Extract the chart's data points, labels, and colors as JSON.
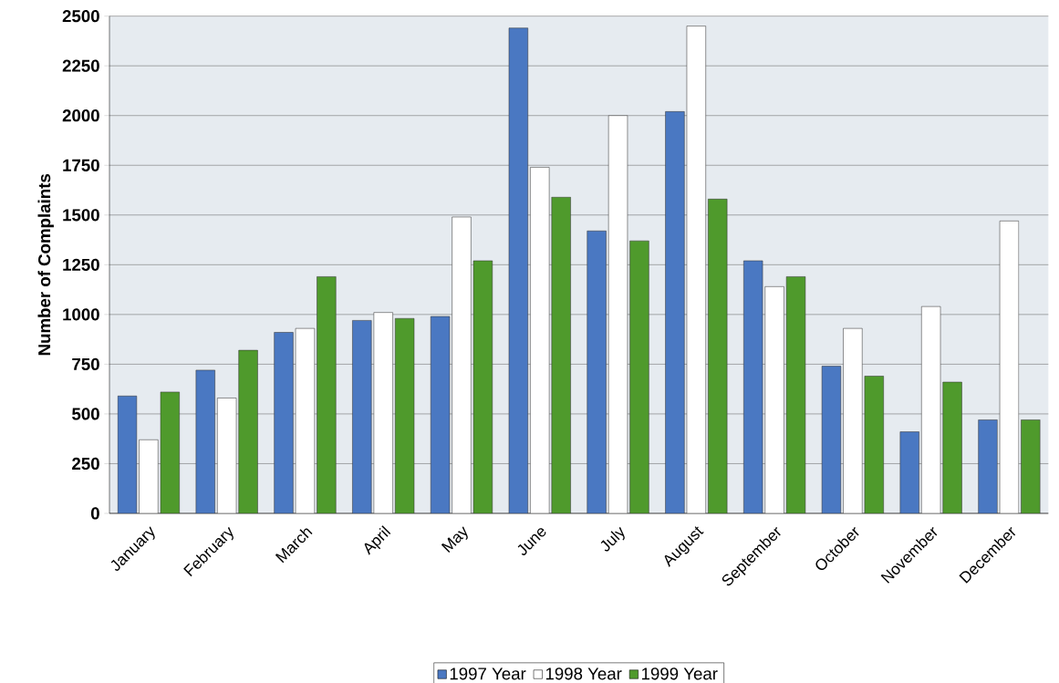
{
  "chart_data": {
    "type": "bar",
    "ylabel": "Number of Complaints",
    "categories": [
      "January",
      "February",
      "March",
      "April",
      "May",
      "June",
      "July",
      "August",
      "September",
      "October",
      "November",
      "December"
    ],
    "series": [
      {
        "name": "1997 Year",
        "color": "#4a78c2",
        "values": [
          590,
          720,
          910,
          970,
          990,
          2440,
          1420,
          2020,
          1270,
          740,
          410,
          470
        ]
      },
      {
        "name": "1998 Year",
        "color": "#ffffff",
        "values": [
          370,
          580,
          930,
          1010,
          1490,
          1740,
          2000,
          2450,
          1140,
          930,
          1040,
          1470
        ]
      },
      {
        "name": "1999 Year",
        "color": "#4f9a2c",
        "values": [
          610,
          820,
          1190,
          980,
          1270,
          1590,
          1370,
          1580,
          1190,
          690,
          660,
          470
        ]
      }
    ],
    "ylim": [
      0,
      2500
    ],
    "yticks": [
      0,
      250,
      500,
      750,
      1000,
      1250,
      1500,
      1750,
      2000,
      2250,
      2500
    ],
    "grid": "y",
    "legend": "bottom"
  }
}
